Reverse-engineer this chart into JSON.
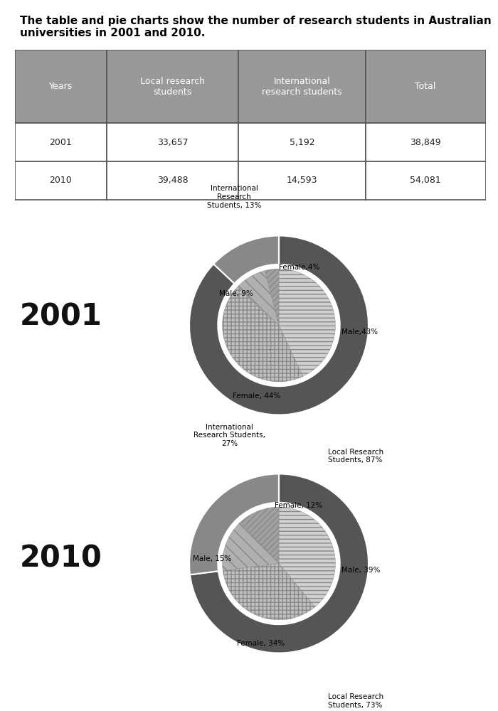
{
  "title": "The table and pie charts show the number of research students in Australian\nuniversities in 2001 and 2010.",
  "table_headers": [
    "Years",
    "Local research\nstudents",
    "International\nresearch students",
    "Total"
  ],
  "table_rows": [
    [
      "2001",
      "33,657",
      "5,192",
      "38,849"
    ],
    [
      "2010",
      "39,488",
      "14,593",
      "54,081"
    ]
  ],
  "header_bg": "#999999",
  "header_fg": "#ffffff",
  "pie2001_outer": [
    87,
    13
  ],
  "pie2001_outer_colors": [
    "#555555",
    "#888888"
  ],
  "pie2001_inner": [
    43,
    44,
    9,
    4
  ],
  "pie2001_inner_colors": [
    "#d0d0d0",
    "#c0c0c0",
    "#b0b0b0",
    "#a0a0a0"
  ],
  "pie2001_inner_hatches": [
    "---",
    "+++",
    "\\\\",
    "////"
  ],
  "pie2010_outer": [
    73,
    27
  ],
  "pie2010_outer_colors": [
    "#555555",
    "#888888"
  ],
  "pie2010_inner": [
    39,
    34,
    15,
    12
  ],
  "pie2010_inner_colors": [
    "#d0d0d0",
    "#c0c0c0",
    "#b0b0b0",
    "#a0a0a0"
  ],
  "pie2010_inner_hatches": [
    "---",
    "+++",
    "\\\\",
    "////"
  ],
  "year_2001": "2001",
  "year_2010": "2010",
  "label_fontsize": 7.5,
  "year_fontsize": 30
}
